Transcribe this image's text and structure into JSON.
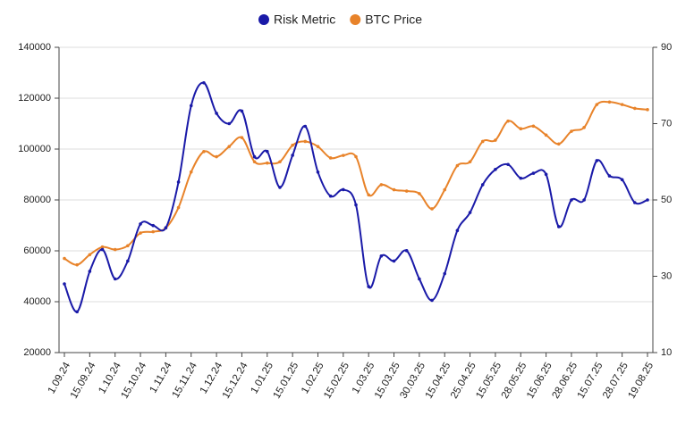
{
  "chart_data": {
    "type": "line",
    "categories": [
      "1.09.24",
      null,
      "15.09.24",
      null,
      "1.10.24",
      null,
      "15.10.24",
      null,
      "1.11.24",
      null,
      "15.11.24",
      null,
      "1.12.24",
      null,
      "15.12.24",
      null,
      "1.01.25",
      null,
      "15.01.25",
      null,
      "1.02.25",
      null,
      "15.02.25",
      null,
      "1.03.25",
      null,
      "15.03.25",
      null,
      "30.03.25",
      null,
      "15.04.25",
      null,
      "25.04.25",
      null,
      "15.05.25",
      null,
      "28.05.25",
      null,
      "15.06.25",
      null,
      "28.06.25",
      null,
      "15.07.25",
      null,
      "28.07.25",
      null,
      "19.08.25"
    ],
    "series": [
      {
        "name": "Risk Metric",
        "color": "#1a1aa8",
        "axis": "y2",
        "values": [
          28,
          20.7,
          31.3,
          37,
          29.3,
          34,
          43.7,
          43.3,
          42.7,
          54.7,
          74.7,
          80.7,
          72.7,
          70,
          73.3,
          61.3,
          62.7,
          53.3,
          61.7,
          69.3,
          57.3,
          51,
          52.7,
          48.7,
          27.3,
          35.3,
          34,
          36.7,
          29.3,
          23.7,
          30.7,
          42,
          46.7,
          54,
          58,
          59.3,
          55.7,
          57,
          56.7,
          43,
          50,
          50,
          60.3,
          56.3,
          55.3,
          49.3,
          50
        ]
      },
      {
        "name": "BTC Price",
        "color": "#e8832a",
        "values": [
          57000,
          54500,
          58500,
          61500,
          60500,
          62000,
          67000,
          67500,
          69000,
          77000,
          91000,
          99000,
          97000,
          101000,
          104500,
          95000,
          94500,
          95000,
          101500,
          103000,
          101000,
          96500,
          97500,
          97000,
          82000,
          86000,
          84000,
          83500,
          82500,
          76500,
          84000,
          93500,
          95000,
          103000,
          103500,
          111000,
          108000,
          109000,
          105500,
          102000,
          107000,
          108500,
          117500,
          118500,
          117500,
          116000,
          115500
        ]
      }
    ],
    "ylim": [
      20000,
      140000
    ],
    "yticks": [
      20000,
      40000,
      60000,
      80000,
      100000,
      120000,
      140000
    ],
    "y2lim": [
      10,
      90
    ],
    "y2ticks": [
      10,
      30,
      50,
      70,
      90
    ],
    "grid": true
  }
}
